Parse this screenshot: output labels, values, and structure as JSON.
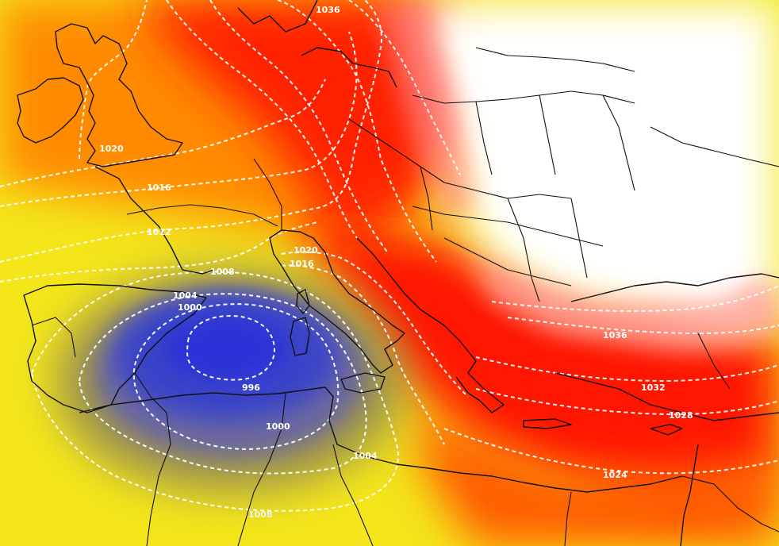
{
  "map": {
    "type": "surface-pressure-isobars",
    "colors": {
      "low_core": "#2f3bd4",
      "low_mid": "#5a62b8",
      "transition": "#8a8a55",
      "yellow": "#f6ef18",
      "orange": "#ff8c00",
      "red": "#ff1a05",
      "high": "#ffffff"
    },
    "isobar_labels": [
      {
        "id": "uk-1020",
        "text": "1020"
      },
      {
        "id": "fr-1016",
        "text": "1016"
      },
      {
        "id": "fr-1012",
        "text": "1012"
      },
      {
        "id": "es-1008",
        "text": "1008"
      },
      {
        "id": "med-1004",
        "text": "1004"
      },
      {
        "id": "med-1000",
        "text": "1000"
      },
      {
        "id": "it-1020",
        "text": "1020"
      },
      {
        "id": "it-1016",
        "text": "1016"
      },
      {
        "id": "center-996",
        "text": "996"
      },
      {
        "id": "south-1000",
        "text": "1000"
      },
      {
        "id": "south-1004",
        "text": "1004"
      },
      {
        "id": "south-1008",
        "text": "1008"
      },
      {
        "id": "north-1036",
        "text": "1036"
      },
      {
        "id": "gr-1036",
        "text": "1036"
      },
      {
        "id": "tr-1032",
        "text": "1032"
      },
      {
        "id": "tr-1028",
        "text": "1028"
      },
      {
        "id": "se-1024",
        "text": "1024"
      }
    ]
  }
}
